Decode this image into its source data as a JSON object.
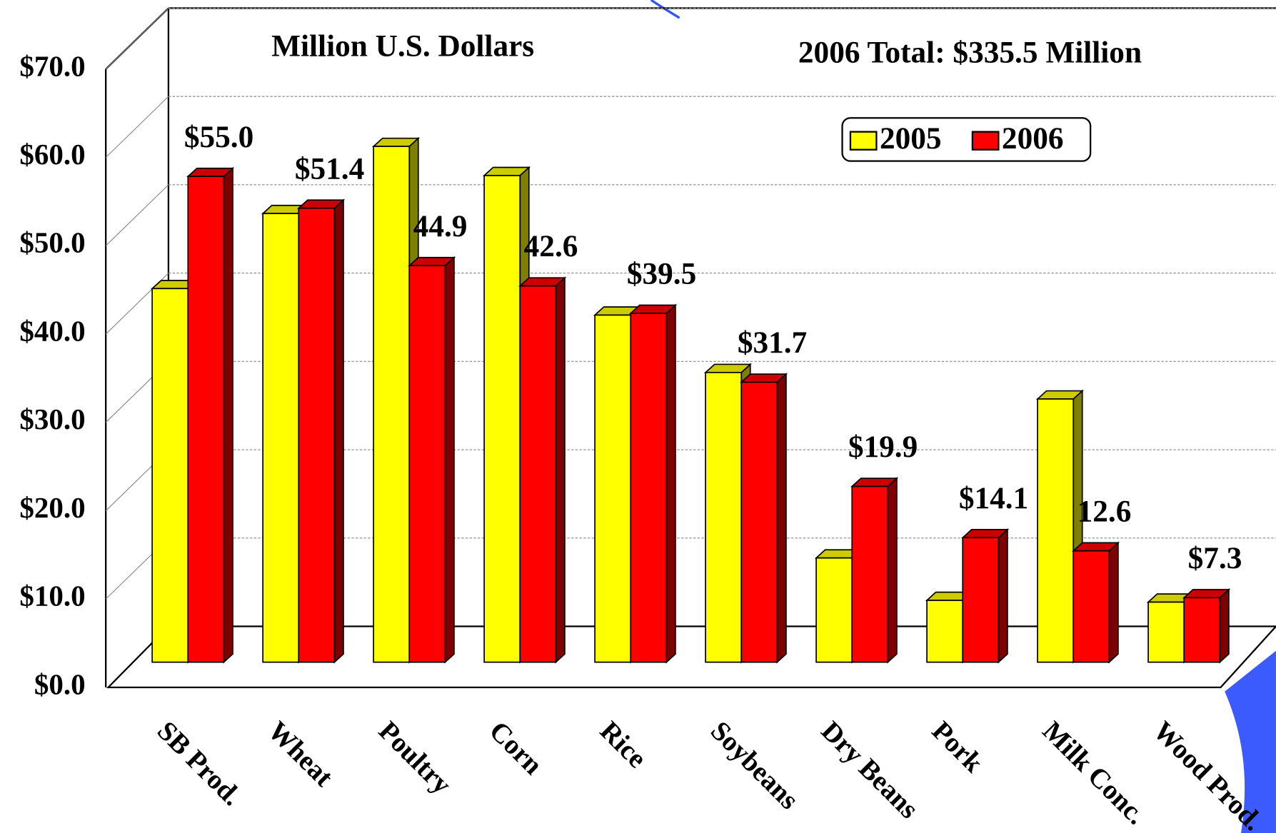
{
  "chart_data": {
    "type": "bar3d",
    "title": "Million U.S. Dollars",
    "subtitle": "2006 Total:  $335.5 Million",
    "categories": [
      "SB Prod.",
      "Wheat",
      "Poultry",
      "Corn",
      "Rice",
      "Soybeans",
      "Dry Beans",
      "Pork",
      "Milk Conc.",
      "Wood Prod."
    ],
    "series": [
      {
        "name": "2005",
        "color": "#ffff00",
        "values": [
          42.3,
          50.8,
          58.4,
          55.1,
          39.3,
          32.8,
          11.8,
          7.0,
          29.8,
          6.8
        ]
      },
      {
        "name": "2006",
        "color": "#ff0000",
        "values": [
          55.0,
          51.4,
          44.9,
          42.6,
          39.5,
          31.7,
          19.9,
          14.1,
          12.6,
          7.3
        ],
        "value_labels": [
          "$55.0",
          "$51.4",
          "44.9",
          "42.6",
          "$39.5",
          "$31.7",
          "$19.9",
          "$14.1",
          "12.6",
          "$7.3"
        ]
      }
    ],
    "ylim": [
      0,
      70
    ],
    "yticks": [
      {
        "value": 0,
        "label": "$0.0"
      },
      {
        "value": 10,
        "label": "$10.0"
      },
      {
        "value": 20,
        "label": "$20.0"
      },
      {
        "value": 30,
        "label": "$30.0"
      },
      {
        "value": 40,
        "label": "$40.0"
      },
      {
        "value": 50,
        "label": "$50.0"
      },
      {
        "value": 60,
        "label": "$60.0"
      },
      {
        "value": 70,
        "label": "$70.0"
      }
    ],
    "grid": true,
    "legend": "top-right"
  }
}
